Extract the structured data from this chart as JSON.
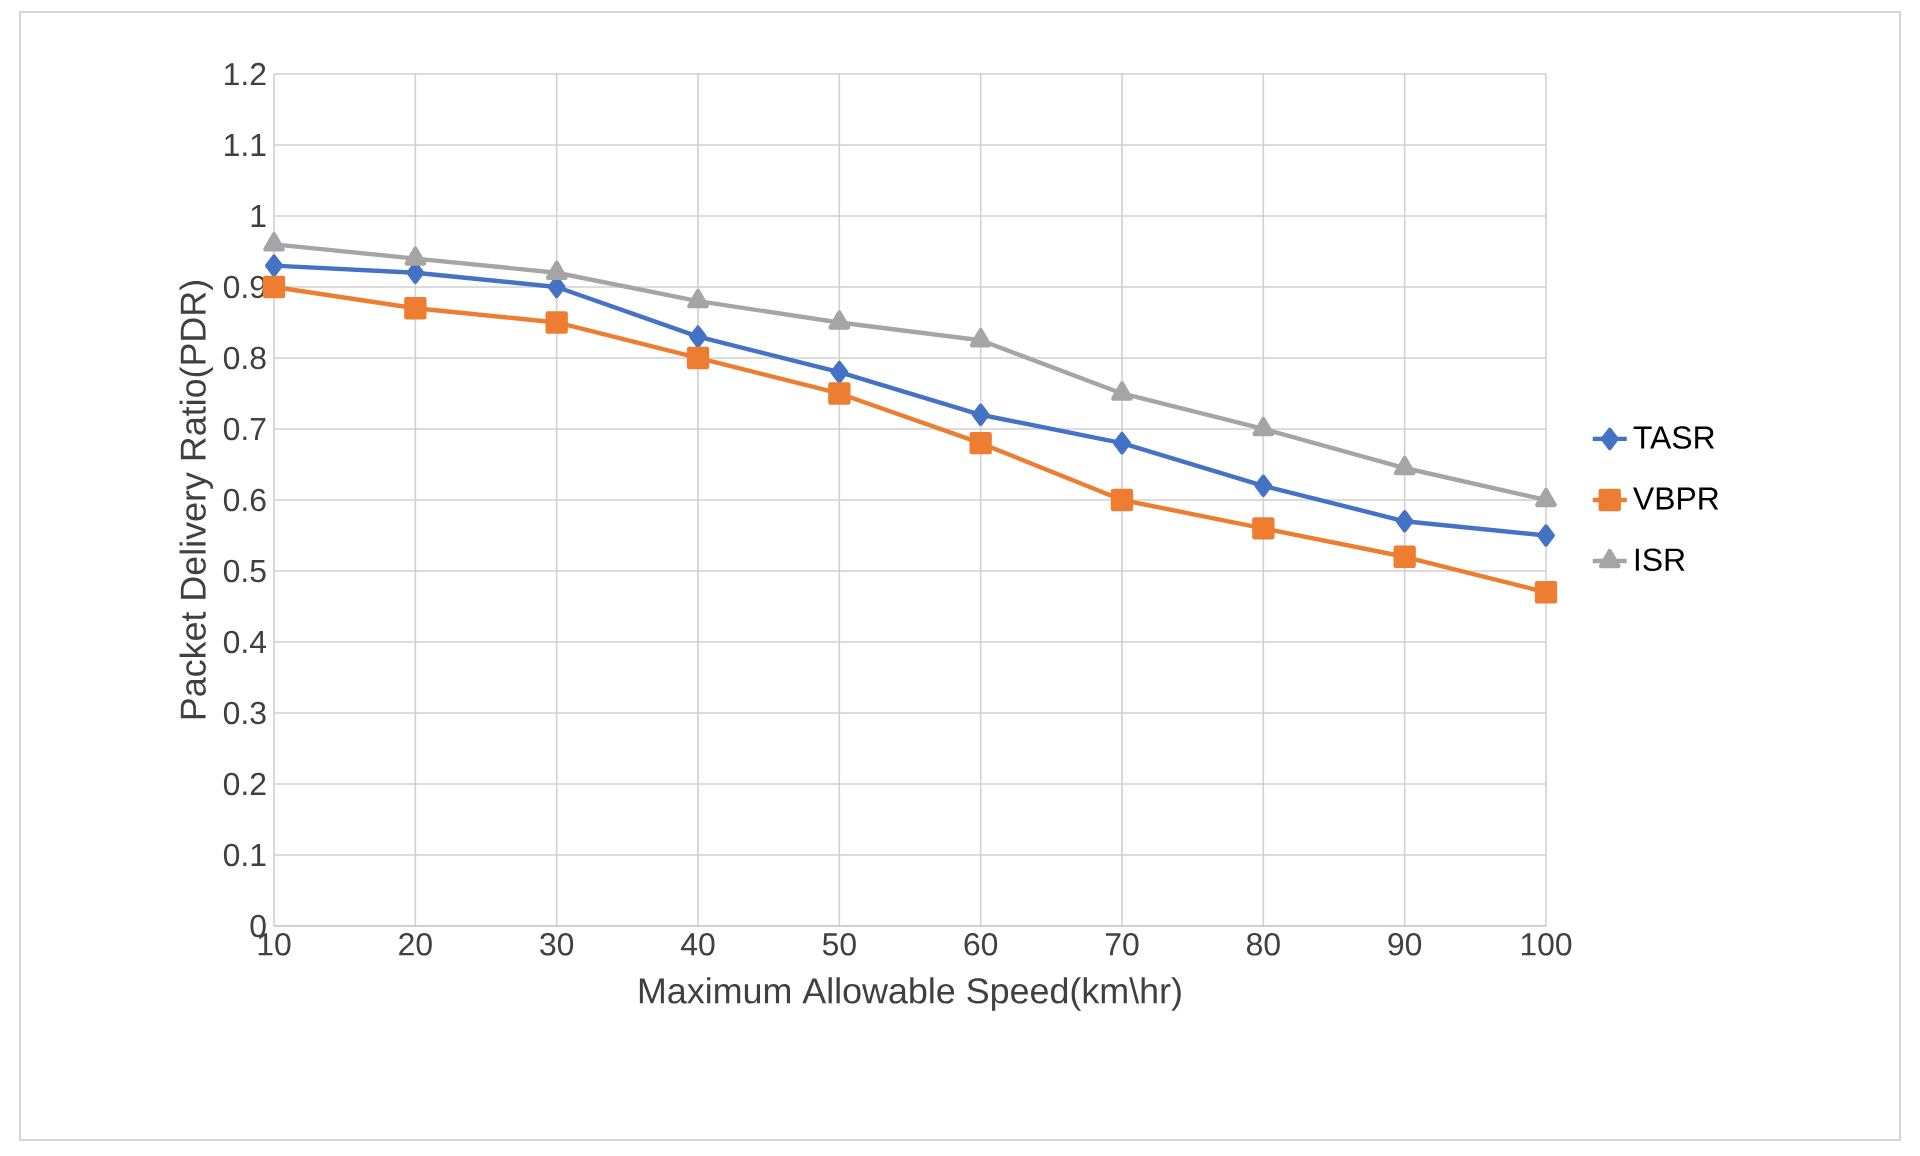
{
  "chart_data": {
    "type": "line",
    "xlabel": "Maximum Allowable Speed(km\\hr)",
    "ylabel": "Packet Delivery Ratio(PDR)",
    "categories": [
      "10",
      "20",
      "30",
      "40",
      "50",
      "60",
      "70",
      "80",
      "90",
      "100"
    ],
    "series": [
      {
        "name": "TASR",
        "color": "#4472c4",
        "marker": "diamond",
        "values": [
          0.93,
          0.92,
          0.9,
          0.83,
          0.78,
          0.72,
          0.68,
          0.62,
          0.57,
          0.55
        ]
      },
      {
        "name": "VBPR",
        "color": "#ed7d31",
        "marker": "square",
        "values": [
          0.9,
          0.87,
          0.85,
          0.8,
          0.75,
          0.68,
          0.6,
          0.56,
          0.52,
          0.47
        ]
      },
      {
        "name": "ISR",
        "color": "#a5a5a5",
        "marker": "triangle",
        "values": [
          0.96,
          0.94,
          0.92,
          0.88,
          0.85,
          0.825,
          0.75,
          0.7,
          0.645,
          0.6
        ]
      }
    ],
    "ylim": [
      0,
      1.2
    ],
    "yticks": [
      0,
      0.1,
      0.2,
      0.3,
      0.4,
      0.5,
      0.6,
      0.7,
      0.8,
      0.9,
      1,
      1.1,
      1.2
    ],
    "grid": true,
    "legend": "right",
    "line_style": "solid"
  }
}
